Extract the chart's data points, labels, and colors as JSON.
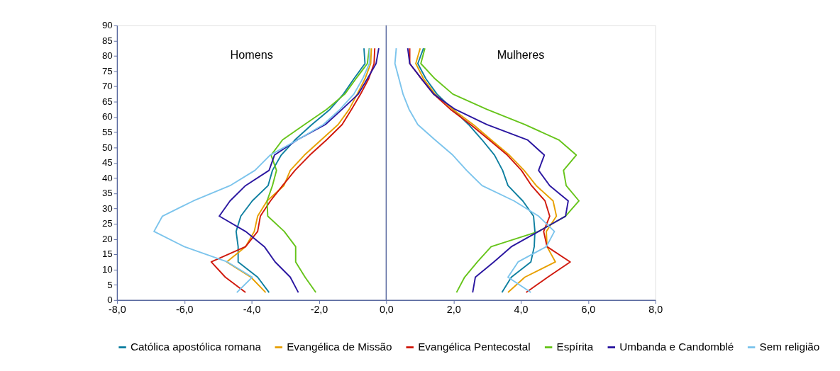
{
  "chart_data": {
    "type": "line",
    "ylim": [
      0,
      90
    ],
    "yticks": [
      0,
      5,
      10,
      15,
      20,
      25,
      30,
      35,
      40,
      45,
      50,
      55,
      60,
      65,
      70,
      75,
      80,
      85,
      90
    ],
    "xlim": [
      -8,
      8
    ],
    "xticks": [
      {
        "value": -8,
        "label": "-8,0"
      },
      {
        "value": -6,
        "label": "-6,0"
      },
      {
        "value": -4,
        "label": "-4,0"
      },
      {
        "value": -2,
        "label": "-2,0"
      },
      {
        "value": 0,
        "label": "0,0"
      },
      {
        "value": 2,
        "label": "2,0"
      },
      {
        "value": 4,
        "label": "4,0"
      },
      {
        "value": 6,
        "label": "6,0"
      },
      {
        "value": 8,
        "label": "8,0"
      }
    ],
    "grid": false,
    "legend": "bottom",
    "marker": "none",
    "line_style": "solid",
    "annotations": [
      "Homens",
      "Mulheres"
    ],
    "ref_lines": [
      {
        "axis": "x",
        "value": 0,
        "color": "#5a6aa0"
      }
    ],
    "series": [
      {
        "name": "Católica apostólica romana",
        "color": "#0e7fa0",
        "values": [
          2.5,
          7.5,
          12.5,
          17.5,
          22.5,
          27.5,
          32.5,
          37.5,
          42.5,
          47.5,
          52.5,
          57.5,
          62.5,
          67.5,
          72.5,
          77.5,
          82.5
        ],
        "x": [
          -3.48,
          -3.82,
          -4.4,
          -4.4,
          -4.46,
          -4.32,
          -3.98,
          -3.51,
          -3.38,
          -3.12,
          -2.71,
          -2.21,
          -1.67,
          -1.27,
          -0.96,
          -0.63,
          -0.66
        ]
      },
      {
        "name": "Evangélica de Missão",
        "color": "#e8a000",
        "values": [
          2.5,
          7.5,
          12.5,
          17.5,
          22.5,
          27.5,
          32.5,
          37.5,
          42.5,
          47.5,
          52.5,
          57.5,
          62.5,
          67.5,
          72.5,
          77.5,
          82.5
        ],
        "x": [
          -3.58,
          -4.02,
          -4.74,
          -4.18,
          -3.92,
          -3.82,
          -3.54,
          -3.04,
          -2.85,
          -2.43,
          -1.93,
          -1.43,
          -1.1,
          -0.86,
          -0.63,
          -0.46,
          -0.44
        ]
      },
      {
        "name": "Evangélica Pentecostal",
        "color": "#d0180c",
        "values": [
          2.5,
          7.5,
          12.5,
          17.5,
          22.5,
          27.5,
          32.5,
          37.5,
          42.5,
          47.5,
          52.5,
          57.5,
          62.5,
          67.5,
          72.5,
          77.5,
          82.5
        ],
        "x": [
          -4.18,
          -4.78,
          -5.2,
          -4.18,
          -3.82,
          -3.74,
          -3.44,
          -3.08,
          -2.71,
          -2.27,
          -1.77,
          -1.31,
          -1.03,
          -0.76,
          -0.52,
          -0.36,
          -0.34
        ]
      },
      {
        "name": "Espírita",
        "color": "#66c41a",
        "values": [
          2.5,
          7.5,
          12.5,
          17.5,
          22.5,
          27.5,
          32.5,
          37.5,
          42.5,
          47.5,
          52.5,
          57.5,
          62.5,
          67.5,
          72.5,
          77.5,
          82.5
        ],
        "x": [
          -2.09,
          -2.41,
          -2.69,
          -2.69,
          -3.03,
          -3.52,
          -3.54,
          -3.38,
          -3.26,
          -3.42,
          -3.08,
          -2.43,
          -1.77,
          -1.23,
          -0.9,
          -0.56,
          -0.5
        ]
      },
      {
        "name": "Umbanda e Candomblé",
        "color": "#2a16a0",
        "values": [
          2.5,
          7.5,
          12.5,
          17.5,
          22.5,
          27.5,
          32.5,
          37.5,
          42.5,
          47.5,
          52.5,
          57.5,
          62.5,
          67.5,
          72.5,
          77.5,
          82.5
        ],
        "x": [
          -2.61,
          -2.85,
          -3.3,
          -3.62,
          -4.18,
          -4.96,
          -4.64,
          -4.18,
          -3.48,
          -3.32,
          -2.64,
          -1.81,
          -1.31,
          -0.83,
          -0.56,
          -0.3,
          -0.22
        ]
      },
      {
        "name": "Sem religião",
        "color": "#7cc4ec",
        "values": [
          2.5,
          7.5,
          12.5,
          17.5,
          22.5,
          27.5,
          32.5,
          37.5,
          42.5,
          47.5,
          52.5,
          57.5,
          62.5,
          67.5,
          72.5,
          77.5,
          82.5
        ],
        "x": [
          -4.44,
          -3.98,
          -4.72,
          -6.0,
          -6.9,
          -6.65,
          -5.73,
          -4.64,
          -3.9,
          -3.45,
          -2.63,
          -1.87,
          -1.37,
          -0.96,
          -0.7,
          -0.5,
          -0.5
        ]
      },
      {
        "color": "#0e7fa0",
        "values": [
          2.5,
          7.5,
          12.5,
          17.5,
          22.5,
          27.5,
          32.5,
          37.5,
          42.5,
          47.5,
          52.5,
          57.5,
          62.5,
          67.5,
          72.5,
          77.5,
          82.5
        ],
        "x": [
          3.44,
          3.72,
          4.3,
          4.4,
          4.42,
          4.38,
          4.06,
          3.62,
          3.46,
          3.22,
          2.85,
          2.45,
          1.98,
          1.51,
          1.18,
          0.94,
          1.11
        ]
      },
      {
        "color": "#e8a000",
        "values": [
          2.5,
          7.5,
          12.5,
          17.5,
          22.5,
          27.5,
          32.5,
          37.5,
          42.5,
          47.5,
          52.5,
          57.5,
          62.5,
          67.5,
          72.5,
          77.5,
          82.5
        ],
        "x": [
          3.62,
          4.12,
          5.03,
          4.78,
          4.76,
          5.06,
          4.96,
          4.46,
          4.1,
          3.66,
          3.12,
          2.59,
          1.98,
          1.45,
          1.11,
          0.88,
          1.01
        ]
      },
      {
        "color": "#d0180c",
        "values": [
          2.5,
          7.5,
          12.5,
          17.5,
          22.5,
          27.5,
          32.5,
          37.5,
          42.5,
          47.5,
          52.5,
          57.5,
          62.5,
          67.5,
          72.5,
          77.5,
          82.5
        ],
        "x": [
          4.16,
          4.8,
          5.47,
          4.78,
          4.68,
          4.86,
          4.72,
          4.32,
          4.02,
          3.6,
          3.06,
          2.51,
          1.91,
          1.41,
          1.05,
          0.7,
          0.7
        ]
      },
      {
        "color": "#66c41a",
        "values": [
          2.5,
          7.5,
          12.5,
          17.5,
          22.5,
          27.5,
          32.5,
          37.5,
          42.5,
          47.5,
          52.5,
          57.5,
          62.5,
          67.5,
          72.5,
          77.5,
          82.5
        ],
        "x": [
          2.09,
          2.33,
          2.71,
          3.12,
          4.53,
          5.33,
          5.73,
          5.35,
          5.27,
          5.65,
          5.13,
          4.12,
          2.99,
          1.98,
          1.45,
          1.03,
          1.15
        ]
      },
      {
        "color": "#2a16a0",
        "values": [
          2.5,
          7.5,
          12.5,
          17.5,
          22.5,
          27.5,
          32.5,
          37.5,
          42.5,
          47.5,
          52.5,
          57.5,
          62.5,
          67.5,
          72.5,
          77.5,
          82.5
        ],
        "x": [
          2.57,
          2.65,
          3.2,
          3.72,
          4.53,
          5.33,
          5.41,
          4.86,
          4.53,
          4.7,
          4.2,
          2.99,
          2.05,
          1.41,
          1.05,
          0.7,
          0.64
        ]
      },
      {
        "color": "#7cc4ec",
        "values": [
          2.5,
          7.5,
          12.5,
          17.5,
          22.5,
          27.5,
          32.5,
          37.5,
          42.5,
          47.5,
          52.5,
          57.5,
          62.5,
          67.5,
          72.5,
          77.5,
          82.5
        ],
        "x": [
          4.3,
          3.62,
          3.92,
          4.76,
          5.0,
          4.53,
          3.8,
          2.85,
          2.39,
          1.98,
          1.45,
          0.94,
          0.68,
          0.5,
          0.38,
          0.26,
          0.3
        ]
      }
    ]
  }
}
